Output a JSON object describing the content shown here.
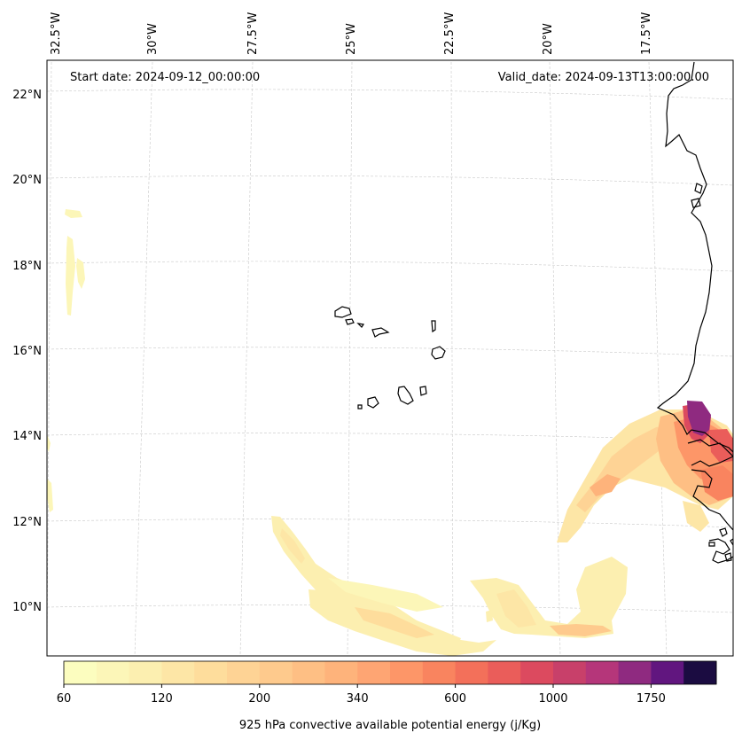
{
  "header": {
    "start_date": "Start date: 2024-09-12_00:00:00",
    "valid_date": "Valid_date: 2024-09-13T13:00:00.00"
  },
  "axes": {
    "longitudes": [
      "32.5°W",
      "30°W",
      "27.5°W",
      "25°W",
      "22.5°W",
      "20°W",
      "17.5°W"
    ],
    "latitudes": [
      "22°N",
      "20°N",
      "18°N",
      "16°N",
      "14°N",
      "12°N",
      "10°N"
    ]
  },
  "colorbar": {
    "label": "925 hPa convective available potential energy (j/Kg)",
    "tick_labels": [
      "60",
      "120",
      "200",
      "340",
      "600",
      "1000",
      "1750"
    ],
    "levels": 20,
    "colors": [
      "#fcfdbf",
      "#fcf6b8",
      "#fcefb0",
      "#fde6a6",
      "#fedd9c",
      "#fed395",
      "#feca8d",
      "#febf84",
      "#feb37b",
      "#fea573",
      "#fd9668",
      "#f9845f",
      "#f3705a",
      "#ea5d5a",
      "#dc4a5f",
      "#c8406a",
      "#b5367a",
      "#8f2a80",
      "#61167f",
      "#1b0c41"
    ]
  },
  "map_data": {
    "region": "Cape Verde and West African coast",
    "extent": {
      "lon_min": -32.5,
      "lon_max": -15.0,
      "lat_min": 8.8,
      "lat_max": 22.7
    }
  }
}
